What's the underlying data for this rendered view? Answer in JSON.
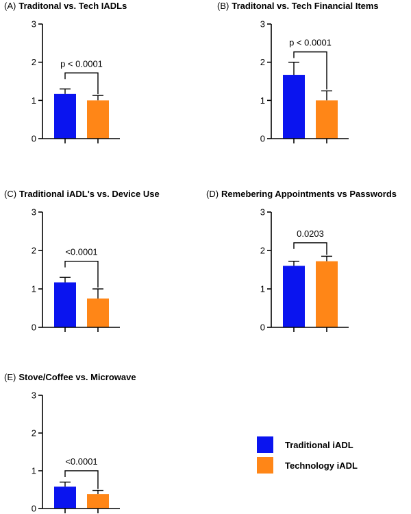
{
  "colors": {
    "traditional": "#0a14ef",
    "technology": "#ff8617"
  },
  "legend": {
    "items": [
      {
        "label": "Traditional iADL",
        "color": "#0a14ef"
      },
      {
        "label": "Technology iADL",
        "color": "#ff8617"
      }
    ]
  },
  "chart_data": [
    {
      "type": "bar",
      "panel": "(A)",
      "title": "Traditonal vs. Tech IADLs",
      "yticks": [
        "0",
        "1",
        "2",
        "3"
      ],
      "ylim": [
        0,
        3
      ],
      "series": [
        {
          "name": "Traditional iADL",
          "value": 1.17,
          "error": 0.13
        },
        {
          "name": "Technology iADL",
          "value": 1.0,
          "error": 0.13
        }
      ],
      "significance": "p < 0.0001",
      "bracket_level": 1.72
    },
    {
      "type": "bar",
      "panel": "(B)",
      "title": "Traditonal vs. Tech Financial Items",
      "yticks": [
        "0",
        "1",
        "2",
        "3"
      ],
      "ylim": [
        0,
        3
      ],
      "series": [
        {
          "name": "Traditional iADL",
          "value": 1.67,
          "error": 0.33
        },
        {
          "name": "Technology iADL",
          "value": 1.0,
          "error": 0.25
        }
      ],
      "significance": "p < 0.0001",
      "bracket_level": 2.27
    },
    {
      "type": "bar",
      "panel": "(C)",
      "title": "Traditional iADL's vs. Device Use",
      "yticks": [
        "0",
        "1",
        "2",
        "3"
      ],
      "ylim": [
        0,
        3
      ],
      "series": [
        {
          "name": "Traditional iADL",
          "value": 1.17,
          "error": 0.13
        },
        {
          "name": "Technology iADL",
          "value": 0.75,
          "error": 0.25
        }
      ],
      "significance": "<0.0001",
      "bracket_level": 1.72
    },
    {
      "type": "bar",
      "panel": "(D)",
      "title": "Remebering Appointments vs Passwords",
      "yticks": [
        "0",
        "1",
        "2",
        "3"
      ],
      "ylim": [
        0,
        3
      ],
      "series": [
        {
          "name": "Traditional iADL",
          "value": 1.6,
          "error": 0.12
        },
        {
          "name": "Technology iADL",
          "value": 1.72,
          "error": 0.13
        }
      ],
      "significance": "0.0203",
      "bracket_level": 2.2
    },
    {
      "type": "bar",
      "panel": "(E)",
      "title": "Stove/Coffee vs. Microwave",
      "yticks": [
        "0",
        "1",
        "2",
        "3"
      ],
      "ylim": [
        0,
        3
      ],
      "series": [
        {
          "name": "Traditional iADL",
          "value": 0.58,
          "error": 0.12
        },
        {
          "name": "Technology iADL",
          "value": 0.38,
          "error": 0.1
        }
      ],
      "significance": "<0.0001",
      "bracket_level": 1.0
    }
  ]
}
